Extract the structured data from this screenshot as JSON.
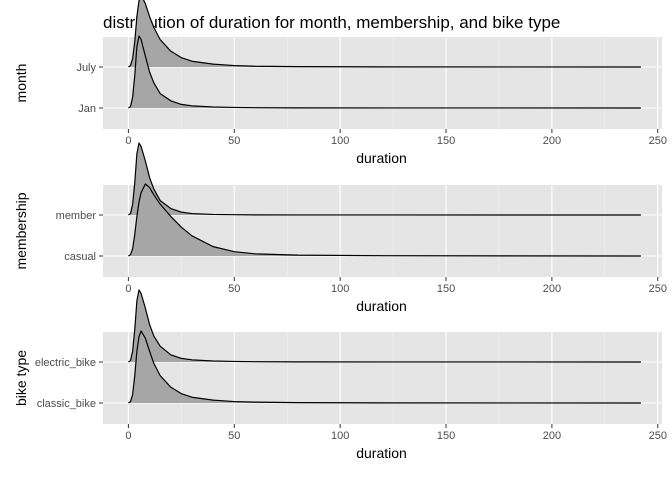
{
  "title": "distribution of duration for month, membership, and bike type",
  "colors": {
    "panel": "#e5e5e5",
    "grid_major": "#ffffff",
    "grid_minor": "#f2f2f2",
    "fill": "#a6a6a6",
    "line": "#000000"
  },
  "chart_data": [
    {
      "type": "ridgeline",
      "xlabel": "duration",
      "ylabel": "month",
      "xlim": [
        -12,
        252
      ],
      "xticks": [
        0,
        50,
        100,
        150,
        200,
        250
      ],
      "grid": true,
      "categories": [
        "Jan",
        "July"
      ],
      "series": [
        {
          "name": "Jan",
          "x": [
            0,
            1,
            2,
            3,
            4,
            5,
            6,
            8,
            10,
            12,
            15,
            20,
            25,
            30,
            40,
            50,
            60,
            80,
            120,
            180,
            242
          ],
          "density": [
            0,
            0.02,
            0.15,
            0.45,
            0.85,
            1.0,
            0.95,
            0.72,
            0.5,
            0.35,
            0.2,
            0.1,
            0.05,
            0.03,
            0.015,
            0.008,
            0.004,
            0.002,
            0.001,
            0.0005,
            0
          ]
        },
        {
          "name": "July",
          "x": [
            0,
            1,
            2,
            3,
            4,
            5,
            6,
            8,
            10,
            12,
            15,
            20,
            25,
            30,
            40,
            50,
            60,
            80,
            120,
            180,
            242
          ],
          "density": [
            0,
            0.02,
            0.12,
            0.35,
            0.7,
            0.92,
            1.0,
            0.88,
            0.7,
            0.55,
            0.38,
            0.22,
            0.13,
            0.08,
            0.04,
            0.02,
            0.01,
            0.005,
            0.002,
            0.001,
            0
          ]
        }
      ]
    },
    {
      "type": "ridgeline",
      "xlabel": "duration",
      "ylabel": "membership",
      "xlim": [
        -12,
        252
      ],
      "xticks": [
        0,
        50,
        100,
        150,
        200,
        250
      ],
      "grid": true,
      "categories": [
        "casual",
        "member"
      ],
      "series": [
        {
          "name": "casual",
          "x": [
            0,
            1,
            2,
            3,
            4,
            5,
            6,
            8,
            10,
            12,
            15,
            20,
            25,
            30,
            40,
            50,
            60,
            80,
            120,
            180,
            242
          ],
          "density": [
            0,
            0.02,
            0.1,
            0.3,
            0.55,
            0.75,
            0.88,
            1.0,
            0.95,
            0.85,
            0.72,
            0.55,
            0.4,
            0.28,
            0.13,
            0.06,
            0.03,
            0.012,
            0.004,
            0.002,
            0
          ]
        },
        {
          "name": "member",
          "x": [
            0,
            1,
            2,
            3,
            4,
            5,
            6,
            8,
            10,
            12,
            15,
            20,
            25,
            30,
            40,
            50,
            60,
            80,
            120,
            180,
            242
          ],
          "density": [
            0,
            0.02,
            0.15,
            0.45,
            0.85,
            1.0,
            0.95,
            0.75,
            0.52,
            0.36,
            0.2,
            0.09,
            0.04,
            0.02,
            0.008,
            0.004,
            0.002,
            0.001,
            0.0005,
            0.0002,
            0
          ]
        }
      ]
    },
    {
      "type": "ridgeline",
      "xlabel": "duration",
      "ylabel": "bike type",
      "xlim": [
        -12,
        252
      ],
      "xticks": [
        0,
        50,
        100,
        150,
        200,
        250
      ],
      "grid": true,
      "categories": [
        "classic_bike",
        "electric_bike"
      ],
      "series": [
        {
          "name": "classic_bike",
          "x": [
            0,
            1,
            2,
            3,
            4,
            5,
            6,
            8,
            10,
            12,
            15,
            20,
            25,
            30,
            40,
            50,
            60,
            80,
            120,
            180,
            242
          ],
          "density": [
            0,
            0.02,
            0.12,
            0.38,
            0.72,
            0.92,
            1.0,
            0.9,
            0.72,
            0.55,
            0.38,
            0.22,
            0.13,
            0.08,
            0.04,
            0.02,
            0.012,
            0.005,
            0.002,
            0.001,
            0
          ]
        },
        {
          "name": "electric_bike",
          "x": [
            0,
            1,
            2,
            3,
            4,
            5,
            6,
            8,
            10,
            12,
            15,
            20,
            25,
            30,
            40,
            50,
            60,
            80,
            120,
            180,
            242
          ],
          "density": [
            0,
            0.02,
            0.15,
            0.45,
            0.85,
            1.0,
            0.95,
            0.75,
            0.52,
            0.36,
            0.22,
            0.1,
            0.05,
            0.03,
            0.015,
            0.008,
            0.004,
            0.002,
            0.001,
            0.0005,
            0
          ]
        }
      ]
    }
  ]
}
